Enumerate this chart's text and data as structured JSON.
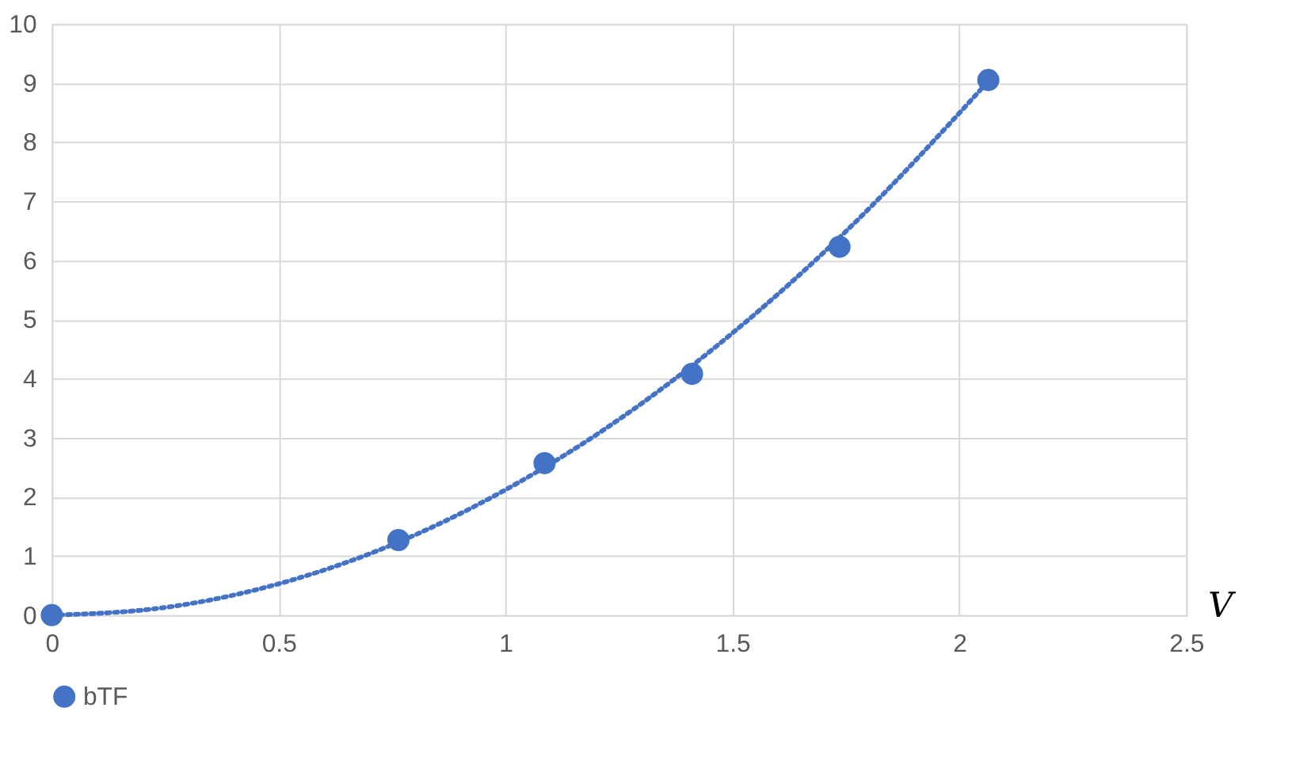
{
  "chart_data": {
    "type": "scatter",
    "xlabel": "V",
    "series": [
      {
        "name": "bTF",
        "color": "#4472c4",
        "x": [
          0,
          0.764,
          1.086,
          1.411,
          1.736,
          2.064
        ],
        "values": [
          0,
          1.27,
          2.57,
          4.08,
          6.23,
          9.05
        ],
        "marker": "circle"
      },
      {
        "type": "line",
        "color": "#4472c4",
        "line_style": "dotted",
        "x": [
          0,
          0.25,
          0.5,
          0.75,
          1,
          1.25,
          1.5,
          1.75,
          2.07
        ],
        "values": [
          0,
          0.13,
          0.53,
          1.19,
          2.12,
          3.31,
          4.77,
          6.49,
          9.08
        ]
      }
    ],
    "xlim": [
      0,
      2.5
    ],
    "xticks": [
      0,
      0.5,
      1,
      1.5,
      2,
      2.5
    ],
    "ylim": [
      0,
      10
    ],
    "yticks": [
      0,
      1,
      2,
      3,
      4,
      5,
      6,
      7,
      8,
      9,
      10
    ],
    "grid": true,
    "legend": "bottom"
  }
}
